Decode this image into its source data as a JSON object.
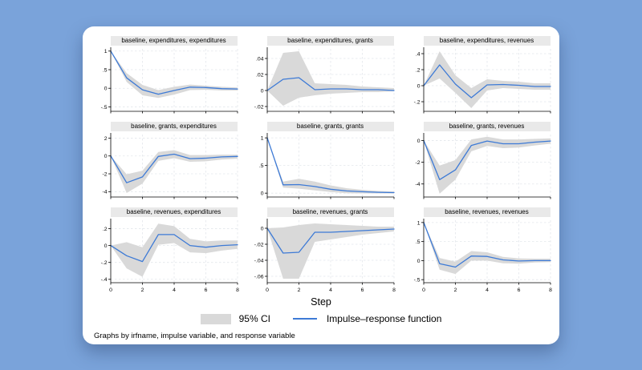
{
  "colors": {
    "page_background": "#7aa3da",
    "card_background": "#ffffff",
    "title_strip": "#e9e9e9",
    "ci_fill": "#d9d9d9",
    "irf_line": "#3d7ad6",
    "gridline": "#e3e7ec",
    "axis": "#000000"
  },
  "chart_data": {
    "type": "line",
    "layout": "3x3 small multiples, shaded 95% confidence band with impulse-response line, dashed gridlines, per-panel y scales",
    "x": [
      0,
      1,
      2,
      3,
      4,
      5,
      6,
      7,
      8
    ],
    "xticks": [
      0,
      2,
      4,
      6,
      8
    ],
    "xlabel": "Step",
    "note": "Graphs by irfname, impulse variable, and response variable",
    "legend": [
      {
        "label": "95% CI",
        "swatch": "area"
      },
      {
        "label": "Impulse–response function",
        "swatch": "line"
      }
    ],
    "subplots": [
      {
        "title": "baseline, expenditures, expenditures",
        "yticks": [
          {
            "v": 1,
            "label": "1"
          },
          {
            "v": 0.5,
            "label": ".5"
          },
          {
            "v": 0,
            "label": "0"
          },
          {
            "v": -0.5,
            "label": "-.5"
          }
        ],
        "ylim": [
          -0.62,
          1.06
        ],
        "irf": [
          1,
          0.28,
          -0.04,
          -0.16,
          -0.06,
          0.03,
          0.02,
          -0.01,
          -0.02
        ],
        "ci_lower": [
          1,
          0.17,
          -0.19,
          -0.26,
          -0.17,
          -0.05,
          -0.04,
          -0.06,
          -0.06
        ],
        "ci_upper": [
          1,
          0.41,
          0.09,
          -0.05,
          0.04,
          0.1,
          0.07,
          0.04,
          0.02
        ]
      },
      {
        "title": "baseline, expenditures, grants",
        "yticks": [
          {
            "v": 0.04,
            "label": ".04"
          },
          {
            "v": 0.02,
            "label": ".02"
          },
          {
            "v": 0,
            "label": "0"
          },
          {
            "v": -0.02,
            "label": "-.02"
          }
        ],
        "ylim": [
          -0.026,
          0.052
        ],
        "irf": [
          0,
          0.014,
          0.016,
          0.001,
          0.002,
          0.002,
          0.001,
          0.001,
          0.0
        ],
        "ci_lower": [
          0,
          -0.019,
          -0.009,
          -0.006,
          -0.004,
          -0.003,
          -0.002,
          -0.002,
          -0.001
        ],
        "ci_upper": [
          0,
          0.047,
          0.049,
          0.009,
          0.008,
          0.007,
          0.005,
          0.004,
          0.003
        ]
      },
      {
        "title": "baseline, expenditures, revenues",
        "yticks": [
          {
            "v": 0.4,
            "label": ".4"
          },
          {
            "v": 0.2,
            "label": ".2"
          },
          {
            "v": 0,
            "label": "0"
          },
          {
            "v": -0.2,
            "label": "-.2"
          }
        ],
        "ylim": [
          -0.32,
          0.46
        ],
        "irf": [
          0,
          0.26,
          0.02,
          -0.15,
          0.01,
          0.015,
          0.005,
          -0.01,
          -0.01
        ],
        "ci_lower": [
          0,
          0.09,
          -0.09,
          -0.28,
          -0.06,
          -0.03,
          -0.04,
          -0.05,
          -0.05
        ],
        "ci_upper": [
          0,
          0.43,
          0.13,
          -0.03,
          0.08,
          0.06,
          0.05,
          0.03,
          0.03
        ]
      },
      {
        "title": "baseline, grants, expenditures",
        "yticks": [
          {
            "v": 2,
            "label": "2"
          },
          {
            "v": 0,
            "label": "0"
          },
          {
            "v": -2,
            "label": "-2"
          },
          {
            "v": -4,
            "label": "-4"
          }
        ],
        "ylim": [
          -4.6,
          2.4
        ],
        "irf": [
          0,
          -3.0,
          -2.35,
          -0.05,
          0.2,
          -0.3,
          -0.25,
          -0.1,
          -0.05
        ],
        "ci_lower": [
          0,
          -4.15,
          -3.1,
          -0.55,
          -0.25,
          -0.65,
          -0.6,
          -0.4,
          -0.3
        ],
        "ci_upper": [
          0,
          -2.05,
          -1.65,
          0.45,
          0.65,
          0.1,
          0.1,
          0.15,
          0.15
        ]
      },
      {
        "title": "baseline, grants, grants",
        "yticks": [
          {
            "v": 1,
            "label": "1"
          },
          {
            "v": 0.5,
            "label": ".5"
          },
          {
            "v": 0,
            "label": "0"
          }
        ],
        "ylim": [
          -0.07,
          1.06
        ],
        "irf": [
          1,
          0.15,
          0.155,
          0.12,
          0.07,
          0.04,
          0.025,
          0.015,
          0.01
        ],
        "ci_lower": [
          1,
          0.1,
          0.08,
          0.05,
          0.02,
          0.0,
          -0.005,
          -0.005,
          -0.005
        ],
        "ci_upper": [
          1,
          0.21,
          0.26,
          0.21,
          0.14,
          0.09,
          0.06,
          0.04,
          0.03
        ]
      },
      {
        "title": "baseline, grants, revenues",
        "yticks": [
          {
            "v": 0,
            "label": "0"
          },
          {
            "v": -2,
            "label": "-2"
          },
          {
            "v": -4,
            "label": "-4"
          }
        ],
        "ylim": [
          -5.2,
          0.55
        ],
        "irf": [
          0,
          -3.6,
          -2.7,
          -0.45,
          -0.05,
          -0.3,
          -0.3,
          -0.15,
          -0.05
        ],
        "ci_lower": [
          0,
          -4.9,
          -3.6,
          -1.0,
          -0.5,
          -0.7,
          -0.65,
          -0.45,
          -0.3
        ],
        "ci_upper": [
          0,
          -2.3,
          -1.8,
          0.1,
          0.35,
          0.1,
          0.1,
          0.15,
          0.2
        ]
      },
      {
        "title": "baseline, revenues, expenditures",
        "yticks": [
          {
            "v": 0.2,
            "label": ".2"
          },
          {
            "v": 0,
            "label": "0"
          },
          {
            "v": -0.2,
            "label": "-.2"
          },
          {
            "v": -0.4,
            "label": "-.4"
          }
        ],
        "ylim": [
          -0.44,
          0.3
        ],
        "irf": [
          0,
          -0.12,
          -0.19,
          0.13,
          0.13,
          0.0,
          -0.02,
          0.0,
          0.01
        ],
        "ci_lower": [
          0,
          -0.27,
          -0.37,
          0.01,
          0.03,
          -0.08,
          -0.09,
          -0.06,
          -0.04
        ],
        "ci_upper": [
          0,
          0.04,
          -0.02,
          0.26,
          0.23,
          0.08,
          0.05,
          0.06,
          0.06
        ]
      },
      {
        "title": "baseline, revenues, grants",
        "yticks": [
          {
            "v": 0,
            "label": "0"
          },
          {
            "v": -0.02,
            "label": "-.02"
          },
          {
            "v": -0.04,
            "label": "-.04"
          },
          {
            "v": -0.06,
            "label": "-.06"
          }
        ],
        "ylim": [
          -0.068,
          0.01
        ],
        "irf": [
          0,
          -0.031,
          -0.03,
          -0.005,
          -0.005,
          -0.004,
          -0.003,
          -0.002,
          -0.001
        ],
        "ci_lower": [
          0,
          -0.063,
          -0.063,
          -0.017,
          -0.014,
          -0.011,
          -0.008,
          -0.006,
          -0.004
        ],
        "ci_upper": [
          0,
          0.001,
          0.004,
          0.006,
          0.005,
          0.004,
          0.003,
          0.002,
          0.002
        ]
      },
      {
        "title": "baseline, revenues, revenues",
        "yticks": [
          {
            "v": 1,
            "label": "1"
          },
          {
            "v": 0.5,
            "label": ".5"
          },
          {
            "v": 0,
            "label": "0"
          },
          {
            "v": -0.5,
            "label": "-.5"
          }
        ],
        "ylim": [
          -0.58,
          1.06
        ],
        "irf": [
          1,
          -0.08,
          -0.17,
          0.12,
          0.11,
          0.02,
          -0.01,
          0.0,
          0.0
        ],
        "ci_lower": [
          1,
          -0.24,
          -0.35,
          0.0,
          0.0,
          -0.07,
          -0.08,
          -0.05,
          -0.04
        ],
        "ci_upper": [
          1,
          0.07,
          -0.03,
          0.25,
          0.22,
          0.1,
          0.06,
          0.05,
          0.05
        ]
      }
    ]
  }
}
